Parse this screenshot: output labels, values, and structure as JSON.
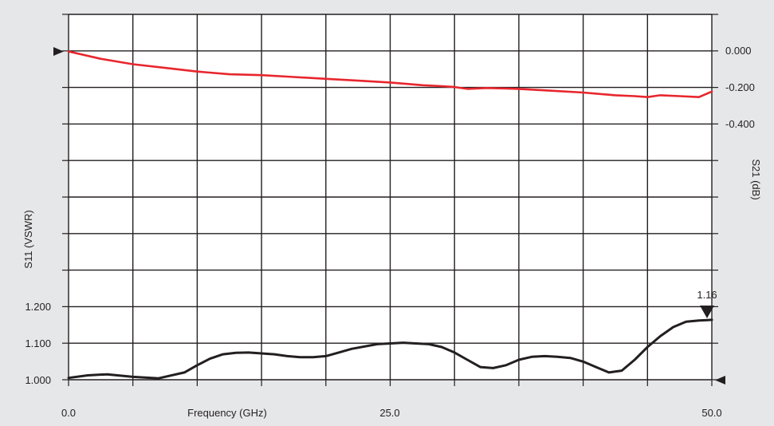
{
  "chart_data": {
    "type": "line",
    "grid": true,
    "xlabel": "Frequency (GHz)",
    "xlim": [
      0,
      50
    ],
    "x_tick_labels": [
      "0.0",
      "25.0",
      "50.0"
    ],
    "left_axis": {
      "label": "S11 (VSWR)",
      "ylim": [
        1.0,
        1.2
      ],
      "tick_labels": [
        "1.200",
        "1.100",
        "1.000"
      ]
    },
    "right_axis": {
      "label": "S21 (dB)",
      "ylim": [
        -0.4,
        0.0
      ],
      "tick_labels": [
        "0.000",
        "-0.200",
        "-0.400"
      ]
    },
    "series": [
      {
        "axis": "right",
        "color": "#e8262d",
        "x": [
          0,
          2.5,
          5,
          7.5,
          10,
          12.5,
          15,
          17.5,
          20,
          22.5,
          25,
          27.5,
          29,
          30,
          31,
          32.5,
          35,
          37.5,
          40,
          42.5,
          44,
          45,
          46,
          47.5,
          49,
          50
        ],
        "values": [
          0.0,
          -0.04,
          -0.07,
          -0.09,
          -0.11,
          -0.125,
          -0.13,
          -0.14,
          -0.15,
          -0.16,
          -0.17,
          -0.185,
          -0.19,
          -0.195,
          -0.205,
          -0.2,
          -0.205,
          -0.215,
          -0.225,
          -0.24,
          -0.245,
          -0.25,
          -0.24,
          -0.245,
          -0.25,
          -0.22
        ]
      },
      {
        "axis": "left",
        "color": "#231f20",
        "x": [
          0,
          1.5,
          3,
          5,
          7,
          9,
          10,
          11,
          12,
          13,
          14,
          16,
          17,
          18,
          19,
          20,
          21,
          22,
          24,
          25,
          26,
          27,
          28,
          29,
          30,
          31,
          32,
          33,
          34,
          35,
          36,
          37,
          38,
          39,
          40,
          41,
          42,
          43,
          44,
          45,
          46,
          47,
          48,
          49,
          50
        ],
        "values": [
          1.005,
          1.012,
          1.015,
          1.008,
          1.004,
          1.02,
          1.04,
          1.058,
          1.07,
          1.074,
          1.075,
          1.07,
          1.065,
          1.062,
          1.062,
          1.065,
          1.075,
          1.085,
          1.098,
          1.1,
          1.102,
          1.1,
          1.098,
          1.09,
          1.075,
          1.055,
          1.035,
          1.032,
          1.04,
          1.055,
          1.063,
          1.065,
          1.063,
          1.06,
          1.05,
          1.035,
          1.02,
          1.025,
          1.055,
          1.09,
          1.12,
          1.145,
          1.16,
          1.163,
          1.165
        ]
      }
    ],
    "annotation": {
      "text": "1.16",
      "x": 50,
      "y": 1.165
    }
  }
}
